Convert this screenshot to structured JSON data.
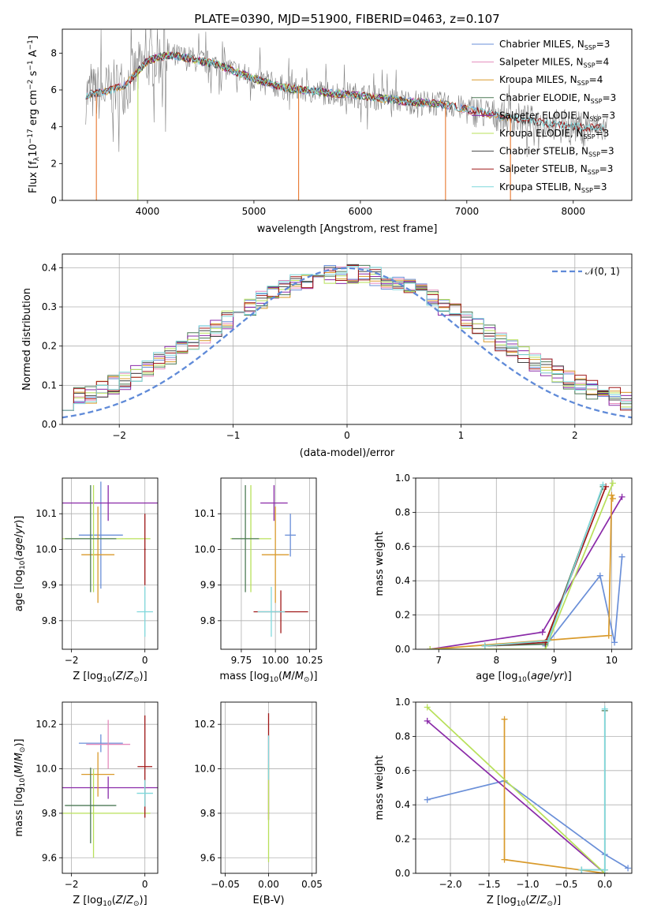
{
  "title": "PLATE=0390, MJD=51900, FIBERID=0463, z=0.107",
  "colors": {
    "Chabrier MILES": "#6a8fd8",
    "Salpeter MILES": "#e58bbd",
    "Kroupa MILES": "#d99a2b",
    "Chabrier ELODIE": "#4d7a57",
    "Salpeter ELODIE": "#8a2aa8",
    "Kroupa ELODIE": "#b8e05a",
    "Chabrier STELIB": "#444444",
    "Salpeter STELIB": "#a01818",
    "Kroupa STELIB": "#7fd8dc",
    "orange": "#e8772e",
    "purple": "#8e30b0",
    "normal": "#5f8ad8",
    "gray": "#808080"
  },
  "chart_data": [
    {
      "id": "spectrum",
      "type": "line",
      "xlabel": "wavelength [Angstrom, rest frame]",
      "ylabel": "Flux [f",
      "xlim": [
        3200,
        8550
      ],
      "ylim": [
        0,
        9.3
      ],
      "xticks": [
        4000,
        5000,
        6000,
        7000,
        8000
      ],
      "yticks": [
        0,
        2,
        4,
        6,
        8
      ],
      "grid": false,
      "legend_position": "upper right",
      "legend": [
        {
          "name": "Chabrier MILES, N",
          "sub": "SSP",
          "suffix": "=3"
        },
        {
          "name": "Salpeter MILES, N",
          "sub": "SSP",
          "suffix": "=4"
        },
        {
          "name": "Kroupa MILES, N",
          "sub": "SSP",
          "suffix": "=4"
        },
        {
          "name": "Chabrier ELODIE, N",
          "sub": "SSP",
          "suffix": "=3"
        },
        {
          "name": "Salpeter ELODIE, N",
          "sub": "SSP",
          "suffix": "=3"
        },
        {
          "name": "Kroupa ELODIE, N",
          "sub": "SSP",
          "suffix": "=3"
        },
        {
          "name": "Chabrier STELIB, N",
          "sub": "SSP",
          "suffix": "=3"
        },
        {
          "name": "Salpeter STELIB, N",
          "sub": "SSP",
          "suffix": "=3"
        },
        {
          "name": "Kroupa STELIB, N",
          "sub": "SSP",
          "suffix": "=3"
        }
      ],
      "continuum": {
        "x": [
          3400,
          3600,
          3800,
          4000,
          4200,
          4400,
          4700,
          5000,
          5300,
          5600,
          6000,
          6400,
          6800,
          7200,
          7600,
          8000,
          8300
        ],
        "y": [
          5.7,
          5.9,
          6.3,
          7.6,
          7.9,
          7.7,
          7.3,
          6.6,
          6.1,
          5.9,
          5.7,
          5.4,
          5.2,
          4.7,
          4.3,
          4.0,
          3.9
        ]
      },
      "dips": [
        {
          "x": 3520,
          "y": 0.0
        },
        {
          "x": 3910,
          "y": 0.0
        },
        {
          "x": 5420,
          "y": 0.0
        },
        {
          "x": 6800,
          "y": 0.0
        },
        {
          "x": 7410,
          "y": 0.0
        }
      ]
    },
    {
      "id": "residuals",
      "type": "step",
      "xlabel": "(data-model)/error",
      "ylabel": "Normed distribution",
      "xlim": [
        -2.5,
        2.5
      ],
      "ylim": [
        0,
        0.435
      ],
      "xticks": [
        -2,
        -1,
        0,
        1,
        2
      ],
      "yticks": [
        0.0,
        0.1,
        0.2,
        0.3,
        0.4
      ],
      "grid": true,
      "legend_position": "upper right",
      "normal_curve": {
        "label": "N(0,1)",
        "mu": 0,
        "sigma": 1
      }
    },
    {
      "id": "age-vs-Z",
      "type": "errorbar",
      "xlabel": "Z [log10(Z/Z⊙)]",
      "ylabel": "age [log10(age/yr)]",
      "xlim": [
        -2.25,
        0.35
      ],
      "ylim": [
        9.72,
        10.2
      ],
      "xticks": [
        -2,
        0
      ],
      "yticks": [
        9.8,
        9.9,
        10.0,
        10.1
      ],
      "grid": true,
      "points": [
        {
          "model": "Chabrier MILES",
          "x": -1.2,
          "y": 10.04,
          "xerr": 0.6,
          "yerr": 0.15
        },
        {
          "model": "Salpeter ELODIE",
          "x": -1.0,
          "y": 10.13,
          "xerr": 1.9,
          "yerr": 0.05
        },
        {
          "model": "Kroupa MILES",
          "x": -1.28,
          "y": 9.985,
          "xerr": 0.45,
          "yerr": 0.135
        },
        {
          "model": "Kroupa ELODIE",
          "x": -1.4,
          "y": 10.03,
          "xerr": 1.55,
          "yerr": 0.15
        },
        {
          "model": "Chabrier ELODIE",
          "x": -1.48,
          "y": 10.03,
          "xerr": 0.7,
          "yerr": 0.15
        },
        {
          "model": "Salpeter STELIB",
          "x": 0.0,
          "y": 10.0,
          "xerr": 0.02,
          "yerr": 0.1
        },
        {
          "model": "Kroupa STELIB",
          "x": 0.0,
          "y": 9.825,
          "xerr": 0.22,
          "yerr": 0.07
        }
      ]
    },
    {
      "id": "age-vs-mass",
      "type": "errorbar",
      "xlabel": "mass [log10(M/M⊙)]",
      "ylabel": "",
      "xlim": [
        9.6,
        10.3
      ],
      "ylim": [
        9.72,
        10.2
      ],
      "xticks": [
        9.75,
        10.0,
        10.25
      ],
      "yticks": [
        9.8,
        9.9,
        10.0,
        10.1
      ],
      "grid": true,
      "points": [
        {
          "model": "Chabrier MILES",
          "x": 10.11,
          "y": 10.04,
          "xerr": 0.04,
          "yerr": 0.06
        },
        {
          "model": "Salpeter ELODIE",
          "x": 9.99,
          "y": 10.13,
          "xerr": 0.1,
          "yerr": 0.05
        },
        {
          "model": "Kroupa MILES",
          "x": 10.0,
          "y": 9.985,
          "xerr": 0.1,
          "yerr": 0.135
        },
        {
          "model": "Kroupa ELODIE",
          "x": 9.82,
          "y": 10.03,
          "xerr": 0.15,
          "yerr": 0.15
        },
        {
          "model": "Chabrier ELODIE",
          "x": 9.78,
          "y": 10.03,
          "xerr": 0.1,
          "yerr": 0.15
        },
        {
          "model": "Salpeter STELIB",
          "x": 10.04,
          "y": 9.825,
          "xerr": 0.2,
          "yerr": 0.06
        },
        {
          "model": "Kroupa STELIB",
          "x": 9.97,
          "y": 9.825,
          "xerr": 0.1,
          "yerr": 0.07
        }
      ]
    },
    {
      "id": "weight-vs-age",
      "type": "line",
      "xlabel": "age [log10(age/yr)]",
      "ylabel": "mass weight",
      "xlim": [
        6.6,
        10.35
      ],
      "ylim": [
        0,
        1.0
      ],
      "xticks": [
        7,
        8,
        9,
        10
      ],
      "yticks": [
        0.0,
        0.2,
        0.4,
        0.6,
        0.8,
        1.0
      ],
      "grid": true,
      "series": [
        {
          "model": "Chabrier MILES",
          "x": [
            8.85,
            9.8,
            10.05,
            10.18
          ],
          "y": [
            0.02,
            0.43,
            0.04,
            0.54
          ]
        },
        {
          "model": "Salpeter ELODIE",
          "x": [
            6.85,
            8.8,
            10.18
          ],
          "y": [
            0.0,
            0.1,
            0.89
          ]
        },
        {
          "model": "Kroupa MILES",
          "x": [
            6.85,
            9.95,
            10.0,
            10.02
          ],
          "y": [
            0.0,
            0.08,
            0.9,
            0.88
          ]
        },
        {
          "model": "Kroupa ELODIE",
          "x": [
            6.85,
            8.85,
            10.02
          ],
          "y": [
            0.0,
            0.0,
            0.97
          ]
        },
        {
          "model": "Chabrier ELODIE",
          "x": [
            7.8,
            8.85,
            9.85
          ],
          "y": [
            0.02,
            0.03,
            0.95
          ]
        },
        {
          "model": "Salpeter STELIB",
          "x": [
            7.8,
            8.85,
            9.9
          ],
          "y": [
            0.02,
            0.04,
            0.95
          ]
        },
        {
          "model": "Kroupa STELIB",
          "x": [
            7.8,
            8.9,
            9.85
          ],
          "y": [
            0.02,
            0.05,
            0.96
          ]
        }
      ]
    },
    {
      "id": "mass-vs-Z",
      "type": "errorbar",
      "xlabel": "Z [log10(Z/Z⊙)]",
      "ylabel": "mass [log10(M/M⊙)]",
      "xlim": [
        -2.25,
        0.35
      ],
      "ylim": [
        9.53,
        10.3
      ],
      "xticks": [
        -2,
        0
      ],
      "yticks": [
        9.6,
        9.8,
        10.0,
        10.2
      ],
      "grid": true,
      "points": [
        {
          "model": "Chabrier MILES",
          "x": -1.2,
          "y": 10.115,
          "xerr": 0.6,
          "yerr": 0.04
        },
        {
          "model": "Salpeter MILES",
          "x": -1.0,
          "y": 10.11,
          "xerr": 0.6,
          "yerr": 0.11
        },
        {
          "model": "Salpeter ELODIE",
          "x": -1.0,
          "y": 9.915,
          "xerr": 1.9,
          "yerr": 0.05
        },
        {
          "model": "Kroupa MILES",
          "x": -1.28,
          "y": 9.975,
          "xerr": 0.45,
          "yerr": 0.1
        },
        {
          "model": "Kroupa ELODIE",
          "x": -1.4,
          "y": 9.8,
          "xerr": 1.55,
          "yerr": 0.2
        },
        {
          "model": "Chabrier ELODIE",
          "x": -1.48,
          "y": 9.835,
          "xerr": 0.7,
          "yerr": 0.17
        },
        {
          "model": "Salpeter STELIB",
          "x": 0.0,
          "y": 10.01,
          "xerr": 0.2,
          "yerr": 0.23
        },
        {
          "model": "Kroupa STELIB",
          "x": 0.0,
          "y": 9.89,
          "xerr": 0.22,
          "yerr": 0.06
        }
      ]
    },
    {
      "id": "mass-vs-ebv",
      "type": "errorbar",
      "xlabel": "E(B-V)",
      "ylabel": "",
      "xlim": [
        -0.055,
        0.055
      ],
      "ylim": [
        9.53,
        10.3
      ],
      "xticks": [
        -0.05,
        0.0,
        0.05
      ],
      "yticks": [
        9.6,
        9.8,
        10.0,
        10.2
      ],
      "grid": true,
      "points": [
        {
          "model": "Salpeter STELIB",
          "x": 0.0,
          "y": 10.01,
          "xerr": 0.0,
          "yerr": 0.24
        },
        {
          "model": "Kroupa ELODIE",
          "x": 0.0,
          "y": 9.8,
          "xerr": 0.0,
          "yerr": 0.22
        },
        {
          "model": "Kroupa STELIB",
          "x": 0.0,
          "y": 10.05,
          "xerr": 0.0,
          "yerr": 0.1
        }
      ]
    },
    {
      "id": "weight-vs-Z",
      "type": "line",
      "xlabel": "Z [log10(Z/Z⊙)]",
      "ylabel": "mass weight",
      "xlim": [
        -2.45,
        0.35
      ],
      "ylim": [
        0,
        1.0
      ],
      "xticks": [
        -2.0,
        -1.5,
        -1.0,
        -0.5,
        0.0
      ],
      "yticks": [
        0.0,
        0.2,
        0.4,
        0.6,
        0.8,
        1.0
      ],
      "grid": true,
      "series": [
        {
          "model": "Chabrier MILES",
          "x": [
            -2.3,
            -1.3,
            0.0,
            0.3
          ],
          "y": [
            0.43,
            0.54,
            0.11,
            0.03
          ]
        },
        {
          "model": "Salpeter ELODIE",
          "x": [
            -2.3,
            0.0
          ],
          "y": [
            0.89,
            0.0
          ]
        },
        {
          "model": "Kroupa MILES",
          "x": [
            -1.3,
            -1.3,
            0.0
          ],
          "y": [
            0.9,
            0.08,
            0.0
          ]
        },
        {
          "model": "Kroupa ELODIE",
          "x": [
            -2.3,
            0.0
          ],
          "y": [
            0.97,
            0.0
          ]
        },
        {
          "model": "Chabrier ELODIE",
          "x": [
            -0.3,
            0.0,
            0.0
          ],
          "y": [
            0.02,
            0.02,
            0.95
          ]
        },
        {
          "model": "Kroupa STELIB",
          "x": [
            -0.3,
            0.0,
            0.0
          ],
          "y": [
            0.02,
            0.02,
            0.96
          ]
        }
      ]
    }
  ]
}
